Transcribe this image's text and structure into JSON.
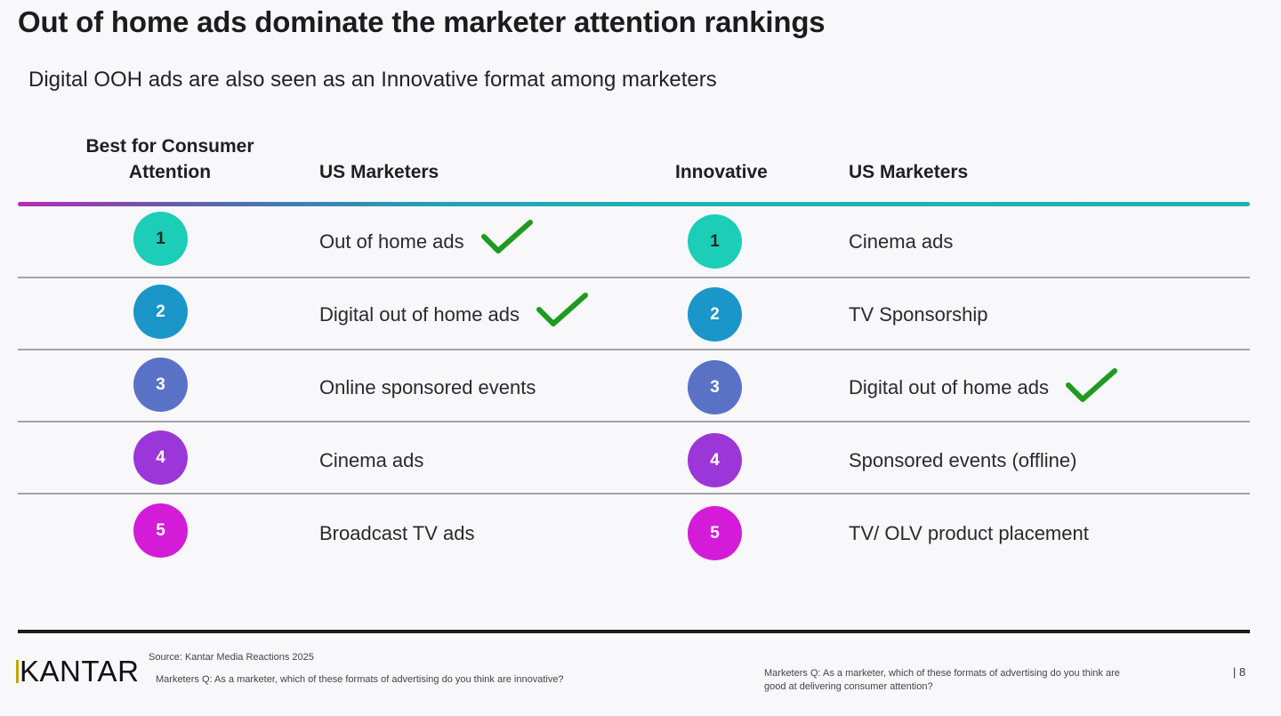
{
  "title": "Out of home ads dominate the marketer attention rankings",
  "subtitle": "Digital OOH ads are also seen as an Innovative format among marketers",
  "colors": {
    "rank_1": "#1ccdb8",
    "rank_2": "#1a96c8",
    "rank_3": "#5a72c6",
    "rank_4": "#9b36d8",
    "rank_5": "#d41bd8",
    "check": "#1f9a1f",
    "header_gradient_start": "#b42bb7",
    "header_gradient_end": "#1db2b2"
  },
  "left_table": {
    "rank_header": "Best for Consumer Attention",
    "group_header": "US Marketers",
    "rows": [
      {
        "rank": "1",
        "label": "Out of home ads",
        "checked": true
      },
      {
        "rank": "2",
        "label": "Digital out of home ads",
        "checked": true
      },
      {
        "rank": "3",
        "label": "Online sponsored events",
        "checked": false
      },
      {
        "rank": "4",
        "label": "Cinema ads",
        "checked": false
      },
      {
        "rank": "5",
        "label": "Broadcast TV ads",
        "checked": false
      }
    ]
  },
  "right_table": {
    "rank_header": "Innovative",
    "group_header": "US Marketers",
    "rows": [
      {
        "rank": "1",
        "label": "Cinema ads",
        "checked": false
      },
      {
        "rank": "2",
        "label": "TV Sponsorship",
        "checked": false
      },
      {
        "rank": "3",
        "label": "Digital out of home ads",
        "checked": true
      },
      {
        "rank": "4",
        "label": "Sponsored events (offline)",
        "checked": false
      },
      {
        "rank": "5",
        "label": "TV/ OLV product placement",
        "checked": false
      }
    ]
  },
  "footer": {
    "logo": "KANTAR",
    "source": "Source: Kantar Media Reactions 2025",
    "question_innovative": "Marketers Q: As a marketer, which of these formats of advertising do you think are innovative?",
    "question_attention": "Marketers Q: As a marketer, which of these formats of advertising do you think are good at delivering consumer attention?",
    "page_number": "| 8"
  }
}
